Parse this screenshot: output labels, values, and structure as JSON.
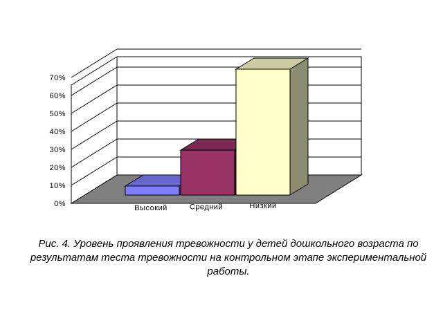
{
  "chart_data": {
    "type": "bar",
    "style": "3d-column",
    "categories": [
      "Высокий",
      "Средний",
      "Низкий"
    ],
    "values": [
      5,
      25,
      70
    ],
    "value_unit": "%",
    "ylim": [
      0,
      70
    ],
    "yticks": [
      "0%",
      "10%",
      "20%",
      "30%",
      "40%",
      "50%",
      "60%",
      "70%"
    ],
    "grid": true,
    "legend": "none",
    "colors": {
      "bars": [
        "#8080ff",
        "#993366",
        "#ffffcc"
      ],
      "floor": "#808080",
      "gridline": "#000000",
      "wall": "#ffffff"
    }
  },
  "caption": "Рис. 4. Уровень проявления тревожности у детей дошкольного возраста по результатам теста тревожности на контрольном этапе экспериментальной работы."
}
